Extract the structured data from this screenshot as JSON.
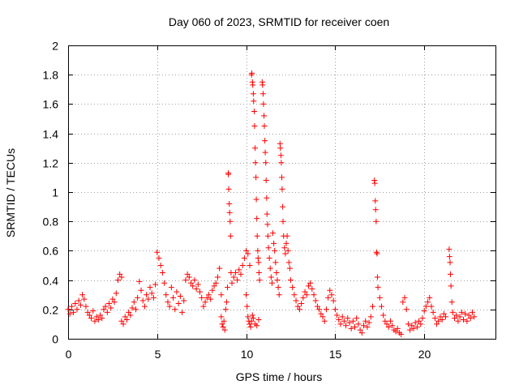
{
  "chart_data": {
    "type": "scatter",
    "title": "Day 060 of 2023, SRMTID for receiver coen",
    "xlabel": "GPS time / hours",
    "ylabel": "SRMTID / TECUs",
    "xlim": [
      0,
      24
    ],
    "ylim": [
      0,
      2
    ],
    "xticks": [
      0,
      5,
      10,
      15,
      20
    ],
    "xtick_labels": [
      "0",
      "5",
      "10",
      "15",
      "20"
    ],
    "yticks": [
      0,
      0.2,
      0.4,
      0.6,
      0.8,
      1,
      1.2,
      1.4,
      1.6,
      1.8,
      2
    ],
    "ytick_labels": [
      "0",
      "0.2",
      "0.4",
      "0.6",
      "0.8",
      "1",
      "1.2",
      "1.4",
      "1.6",
      "1.8",
      "2"
    ],
    "grid": true,
    "marker": "+",
    "color": "#ff0000",
    "series": [
      {
        "name": "SRMTID",
        "points": [
          [
            0.0,
            0.2
          ],
          [
            0.1,
            0.17
          ],
          [
            0.2,
            0.22
          ],
          [
            0.3,
            0.18
          ],
          [
            0.4,
            0.24
          ],
          [
            0.5,
            0.2
          ],
          [
            0.6,
            0.26
          ],
          [
            0.7,
            0.23
          ],
          [
            0.8,
            0.3
          ],
          [
            0.9,
            0.27
          ],
          [
            1.0,
            0.22
          ],
          [
            1.1,
            0.18
          ],
          [
            1.2,
            0.16
          ],
          [
            1.3,
            0.14
          ],
          [
            1.4,
            0.19
          ],
          [
            1.5,
            0.12
          ],
          [
            1.6,
            0.15
          ],
          [
            1.7,
            0.13
          ],
          [
            1.8,
            0.16
          ],
          [
            1.9,
            0.14
          ],
          [
            2.0,
            0.2
          ],
          [
            2.1,
            0.22
          ],
          [
            2.2,
            0.18
          ],
          [
            2.3,
            0.24
          ],
          [
            2.4,
            0.21
          ],
          [
            2.5,
            0.27
          ],
          [
            2.6,
            0.25
          ],
          [
            2.7,
            0.31
          ],
          [
            2.8,
            0.4
          ],
          [
            2.9,
            0.44
          ],
          [
            3.0,
            0.42
          ],
          [
            3.0,
            0.12
          ],
          [
            3.1,
            0.1
          ],
          [
            3.2,
            0.15
          ],
          [
            3.3,
            0.13
          ],
          [
            3.4,
            0.18
          ],
          [
            3.5,
            0.16
          ],
          [
            3.6,
            0.21
          ],
          [
            3.7,
            0.25
          ],
          [
            3.8,
            0.2
          ],
          [
            3.9,
            0.28
          ],
          [
            4.0,
            0.39
          ],
          [
            4.1,
            0.33
          ],
          [
            4.2,
            0.26
          ],
          [
            4.3,
            0.22
          ],
          [
            4.4,
            0.3
          ],
          [
            4.5,
            0.27
          ],
          [
            4.6,
            0.35
          ],
          [
            4.7,
            0.31
          ],
          [
            4.8,
            0.28
          ],
          [
            4.9,
            0.37
          ],
          [
            5.0,
            0.59
          ],
          [
            5.1,
            0.55
          ],
          [
            5.2,
            0.5
          ],
          [
            5.3,
            0.45
          ],
          [
            5.4,
            0.38
          ],
          [
            5.5,
            0.3
          ],
          [
            5.6,
            0.25
          ],
          [
            5.7,
            0.22
          ],
          [
            5.8,
            0.35
          ],
          [
            5.9,
            0.28
          ],
          [
            6.0,
            0.2
          ],
          [
            6.1,
            0.32
          ],
          [
            6.2,
            0.24
          ],
          [
            6.3,
            0.29
          ],
          [
            6.4,
            0.18
          ],
          [
            6.5,
            0.26
          ],
          [
            6.6,
            0.4
          ],
          [
            6.7,
            0.44
          ],
          [
            6.8,
            0.42
          ],
          [
            6.9,
            0.38
          ],
          [
            7.0,
            0.36
          ],
          [
            7.1,
            0.4
          ],
          [
            7.2,
            0.34
          ],
          [
            7.3,
            0.37
          ],
          [
            7.4,
            0.32
          ],
          [
            7.5,
            0.28
          ],
          [
            7.6,
            0.22
          ],
          [
            7.7,
            0.25
          ],
          [
            7.8,
            0.28
          ],
          [
            7.9,
            0.3
          ],
          [
            8.0,
            0.27
          ],
          [
            8.1,
            0.33
          ],
          [
            8.2,
            0.36
          ],
          [
            8.3,
            0.38
          ],
          [
            8.4,
            0.42
          ],
          [
            8.5,
            0.48
          ],
          [
            8.6,
            0.3
          ],
          [
            8.6,
            0.15
          ],
          [
            8.65,
            0.1
          ],
          [
            8.7,
            0.08
          ],
          [
            8.75,
            0.12
          ],
          [
            8.8,
            0.06
          ],
          [
            8.85,
            0.2
          ],
          [
            8.9,
            0.25
          ],
          [
            8.95,
            0.35
          ],
          [
            9.0,
            1.13
          ],
          [
            9.0,
            1.12
          ],
          [
            9.02,
            1.02
          ],
          [
            9.05,
            0.92
          ],
          [
            9.07,
            0.86
          ],
          [
            9.1,
            0.8
          ],
          [
            9.12,
            0.7
          ],
          [
            9.15,
            0.45
          ],
          [
            9.2,
            0.38
          ],
          [
            9.3,
            0.42
          ],
          [
            9.4,
            0.45
          ],
          [
            9.5,
            0.4
          ],
          [
            9.6,
            0.47
          ],
          [
            9.7,
            0.44
          ],
          [
            9.8,
            0.5
          ],
          [
            9.9,
            0.55
          ],
          [
            10.0,
            0.6
          ],
          [
            10.1,
            0.58
          ],
          [
            10.2,
            0.5
          ],
          [
            10.0,
            0.3
          ],
          [
            10.05,
            0.22
          ],
          [
            10.1,
            0.15
          ],
          [
            10.15,
            0.12
          ],
          [
            10.2,
            0.1
          ],
          [
            10.25,
            0.08
          ],
          [
            10.3,
            0.12
          ],
          [
            10.35,
            0.16
          ],
          [
            10.4,
            0.14
          ],
          [
            10.5,
            0.1
          ],
          [
            10.6,
            0.09
          ],
          [
            10.7,
            0.13
          ],
          [
            10.3,
            1.8
          ],
          [
            10.32,
            1.81
          ],
          [
            10.35,
            1.75
          ],
          [
            10.37,
            1.73
          ],
          [
            10.4,
            1.67
          ],
          [
            10.42,
            1.62
          ],
          [
            10.45,
            1.55
          ],
          [
            10.47,
            1.45
          ],
          [
            10.5,
            1.3
          ],
          [
            10.52,
            1.2
          ],
          [
            10.55,
            1.1
          ],
          [
            10.57,
            0.95
          ],
          [
            10.6,
            0.82
          ],
          [
            10.62,
            0.7
          ],
          [
            10.65,
            0.6
          ],
          [
            10.67,
            0.55
          ],
          [
            10.7,
            0.52
          ],
          [
            10.72,
            0.45
          ],
          [
            10.75,
            0.4
          ],
          [
            10.9,
            1.75
          ],
          [
            10.92,
            1.73
          ],
          [
            10.95,
            1.67
          ],
          [
            10.97,
            1.6
          ],
          [
            11.0,
            1.52
          ],
          [
            11.02,
            1.45
          ],
          [
            11.05,
            1.35
          ],
          [
            11.07,
            1.27
          ],
          [
            11.1,
            1.2
          ],
          [
            11.12,
            1.08
          ],
          [
            11.15,
            0.96
          ],
          [
            11.17,
            0.85
          ],
          [
            11.2,
            0.78
          ],
          [
            11.22,
            0.7
          ],
          [
            11.25,
            0.62
          ],
          [
            11.3,
            0.55
          ],
          [
            11.35,
            0.48
          ],
          [
            11.4,
            0.42
          ],
          [
            11.45,
            0.38
          ],
          [
            11.5,
            0.72
          ],
          [
            11.55,
            0.65
          ],
          [
            11.6,
            0.6
          ],
          [
            11.65,
            0.52
          ],
          [
            11.7,
            0.45
          ],
          [
            11.75,
            0.4
          ],
          [
            11.8,
            0.35
          ],
          [
            11.85,
            0.3
          ],
          [
            11.9,
            1.33
          ],
          [
            11.92,
            1.3
          ],
          [
            11.95,
            1.25
          ],
          [
            11.97,
            1.2
          ],
          [
            12.0,
            1.1
          ],
          [
            12.02,
            1.02
          ],
          [
            12.05,
            0.9
          ],
          [
            12.07,
            0.8
          ],
          [
            12.1,
            0.7
          ],
          [
            12.15,
            0.62
          ],
          [
            12.2,
            0.58
          ],
          [
            12.25,
            0.65
          ],
          [
            12.3,
            0.7
          ],
          [
            12.35,
            0.6
          ],
          [
            12.4,
            0.52
          ],
          [
            12.45,
            0.48
          ],
          [
            12.5,
            0.4
          ],
          [
            12.6,
            0.35
          ],
          [
            12.7,
            0.3
          ],
          [
            12.8,
            0.26
          ],
          [
            12.9,
            0.22
          ],
          [
            13.0,
            0.2
          ],
          [
            13.1,
            0.24
          ],
          [
            13.2,
            0.28
          ],
          [
            13.3,
            0.32
          ],
          [
            13.4,
            0.3
          ],
          [
            13.5,
            0.36
          ],
          [
            13.6,
            0.38
          ],
          [
            13.7,
            0.34
          ],
          [
            13.8,
            0.3
          ],
          [
            13.9,
            0.26
          ],
          [
            14.0,
            0.22
          ],
          [
            14.1,
            0.2
          ],
          [
            14.2,
            0.17
          ],
          [
            14.3,
            0.15
          ],
          [
            14.4,
            0.12
          ],
          [
            14.5,
            0.2
          ],
          [
            14.6,
            0.28
          ],
          [
            14.7,
            0.33
          ],
          [
            14.8,
            0.3
          ],
          [
            14.9,
            0.26
          ],
          [
            15.0,
            0.2
          ],
          [
            15.1,
            0.16
          ],
          [
            15.2,
            0.13
          ],
          [
            15.3,
            0.1
          ],
          [
            15.4,
            0.15
          ],
          [
            15.5,
            0.12
          ],
          [
            15.6,
            0.09
          ],
          [
            15.7,
            0.14
          ],
          [
            15.8,
            0.11
          ],
          [
            15.9,
            0.07
          ],
          [
            16.0,
            0.12
          ],
          [
            16.1,
            0.08
          ],
          [
            16.2,
            0.14
          ],
          [
            16.3,
            0.1
          ],
          [
            16.4,
            0.06
          ],
          [
            16.5,
            0.04
          ],
          [
            16.6,
            0.09
          ],
          [
            16.7,
            0.12
          ],
          [
            16.8,
            0.08
          ],
          [
            16.9,
            0.11
          ],
          [
            17.0,
            0.15
          ],
          [
            17.1,
            0.22
          ],
          [
            17.2,
            1.08
          ],
          [
            17.22,
            1.06
          ],
          [
            17.25,
            0.94
          ],
          [
            17.27,
            0.88
          ],
          [
            17.3,
            0.8
          ],
          [
            17.32,
            0.59
          ],
          [
            17.35,
            0.58
          ],
          [
            17.37,
            0.42
          ],
          [
            17.4,
            0.35
          ],
          [
            17.5,
            0.28
          ],
          [
            17.6,
            0.22
          ],
          [
            17.7,
            0.16
          ],
          [
            17.8,
            0.12
          ],
          [
            17.9,
            0.1
          ],
          [
            18.0,
            0.08
          ],
          [
            18.1,
            0.12
          ],
          [
            18.2,
            0.09
          ],
          [
            18.3,
            0.06
          ],
          [
            18.4,
            0.05
          ],
          [
            18.5,
            0.07
          ],
          [
            18.6,
            0.04
          ],
          [
            18.7,
            0.03
          ],
          [
            18.8,
            0.25
          ],
          [
            18.9,
            0.28
          ],
          [
            19.0,
            0.2
          ],
          [
            19.1,
            0.1
          ],
          [
            19.2,
            0.06
          ],
          [
            19.3,
            0.09
          ],
          [
            19.4,
            0.07
          ],
          [
            19.5,
            0.11
          ],
          [
            19.6,
            0.08
          ],
          [
            19.7,
            0.12
          ],
          [
            19.8,
            0.1
          ],
          [
            19.9,
            0.14
          ],
          [
            20.0,
            0.19
          ],
          [
            20.1,
            0.22
          ],
          [
            20.2,
            0.25
          ],
          [
            20.3,
            0.28
          ],
          [
            20.4,
            0.22
          ],
          [
            20.5,
            0.18
          ],
          [
            20.6,
            0.14
          ],
          [
            20.7,
            0.1
          ],
          [
            20.8,
            0.12
          ],
          [
            20.9,
            0.15
          ],
          [
            21.0,
            0.13
          ],
          [
            21.1,
            0.17
          ],
          [
            21.2,
            0.15
          ],
          [
            21.4,
            0.61
          ],
          [
            21.42,
            0.56
          ],
          [
            21.45,
            0.52
          ],
          [
            21.47,
            0.44
          ],
          [
            21.5,
            0.36
          ],
          [
            21.55,
            0.25
          ],
          [
            21.6,
            0.18
          ],
          [
            21.7,
            0.14
          ],
          [
            21.8,
            0.16
          ],
          [
            21.9,
            0.12
          ],
          [
            22.0,
            0.15
          ],
          [
            22.1,
            0.18
          ],
          [
            22.2,
            0.13
          ],
          [
            22.3,
            0.17
          ],
          [
            22.4,
            0.12
          ],
          [
            22.5,
            0.16
          ],
          [
            22.6,
            0.14
          ],
          [
            22.7,
            0.18
          ],
          [
            22.8,
            0.15
          ]
        ]
      }
    ]
  }
}
